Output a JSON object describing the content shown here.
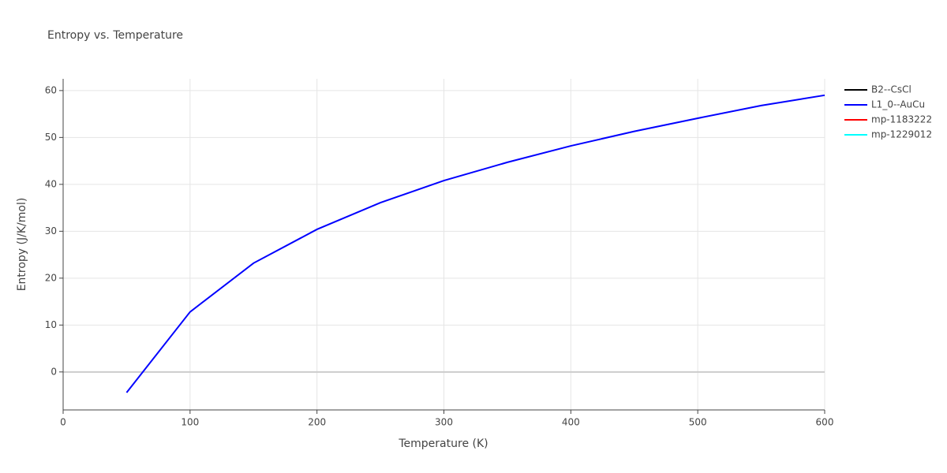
{
  "chart_data": {
    "type": "line",
    "title": "Entropy vs. Temperature",
    "x_label": "Temperature (K)",
    "y_label": "Entropy (J/K/mol)",
    "xlim": [
      0,
      600
    ],
    "xticks": [
      0,
      100,
      200,
      300,
      400,
      500,
      600
    ],
    "ylim": [
      -8.1,
      62.5
    ],
    "yticks": [
      0,
      10,
      20,
      30,
      40,
      50,
      60
    ],
    "grid": true,
    "legend": "right",
    "series": [
      {
        "name": "B2--CsCl",
        "color": "#000000",
        "x": [],
        "values": []
      },
      {
        "name": "L1_0--AuCu",
        "color": "#0000ff",
        "x": [
          50,
          100,
          150,
          200,
          250,
          300,
          350,
          400,
          450,
          500,
          550,
          600
        ],
        "values": [
          -4.4,
          12.8,
          23.2,
          30.4,
          36.1,
          40.8,
          44.7,
          48.2,
          51.3,
          54.1,
          56.8,
          59.0
        ]
      },
      {
        "name": "mp-1183222",
        "color": "#ff0000",
        "x": [],
        "values": []
      },
      {
        "name": "mp-1229012",
        "color": "#00ffff",
        "x": [],
        "values": []
      }
    ]
  }
}
